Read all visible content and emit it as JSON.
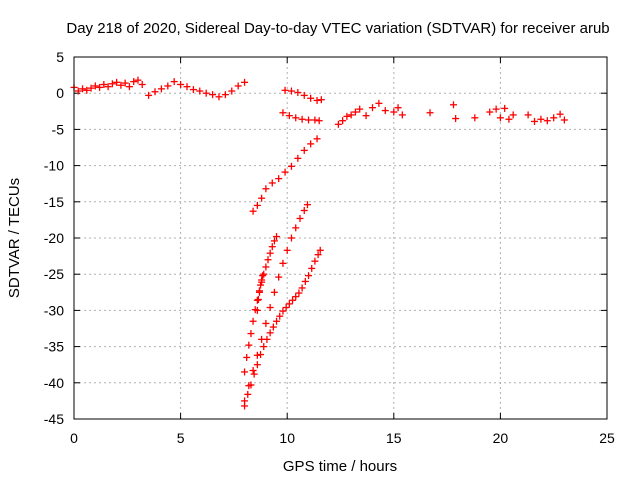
{
  "chart_data": {
    "type": "scatter",
    "title": "Day 218 of 2020, Sidereal Day-to-day VTEC variation (SDTVAR) for receiver arub",
    "xlabel": "GPS time / hours",
    "ylabel": "SDTVAR / TECUs",
    "xlim": [
      0,
      25
    ],
    "ylim": [
      -45,
      5
    ],
    "xticks": [
      0,
      5,
      10,
      15,
      20,
      25
    ],
    "yticks": [
      5,
      0,
      -5,
      -10,
      -15,
      -20,
      -25,
      -30,
      -35,
      -40,
      -45
    ],
    "grid": true,
    "marker": "plus",
    "color": "#ff0000",
    "series": [
      {
        "x": [
          0.0,
          0.2,
          0.4,
          0.6,
          0.8,
          1.0,
          1.2,
          1.4,
          1.6,
          1.8,
          2.0,
          2.2,
          2.4,
          2.6,
          2.8,
          3.0,
          3.2
        ],
        "values": [
          0.8,
          0.3,
          0.6,
          0.4,
          0.7,
          1.0,
          0.8,
          1.2,
          0.9,
          1.3,
          1.5,
          1.1,
          1.4,
          0.9,
          1.6,
          1.8,
          1.2
        ]
      },
      {
        "x": [
          3.5,
          3.8,
          4.1,
          4.4,
          4.7,
          5.0,
          5.3,
          5.6,
          5.9,
          6.2,
          6.5,
          6.8,
          7.1,
          7.4,
          7.7,
          8.0
        ],
        "values": [
          -0.3,
          0.2,
          0.6,
          1.0,
          1.6,
          1.2,
          0.9,
          0.5,
          0.3,
          0.0,
          -0.2,
          -0.5,
          -0.2,
          0.3,
          1.0,
          1.5
        ]
      },
      {
        "x": [
          9.9,
          10.2,
          10.5,
          10.8,
          11.1,
          11.4,
          11.6
        ],
        "values": [
          0.4,
          0.3,
          0.1,
          -0.3,
          -0.7,
          -1.0,
          -0.9
        ]
      },
      {
        "x": [
          9.8,
          10.1,
          10.4,
          10.7,
          11.0,
          11.3,
          11.5
        ],
        "values": [
          -2.7,
          -3.1,
          -3.4,
          -3.6,
          -3.7,
          -3.7,
          -3.8
        ]
      },
      {
        "x": [
          12.4,
          12.6,
          12.8,
          13.0,
          13.2,
          13.4,
          13.7,
          14.0,
          14.3,
          14.6,
          15.0,
          15.2,
          15.4
        ],
        "values": [
          -4.3,
          -3.8,
          -3.2,
          -3.0,
          -2.6,
          -2.2,
          -3.1,
          -2.0,
          -1.4,
          -2.4,
          -2.6,
          -2.0,
          -3.0
        ]
      },
      {
        "x": [
          16.7,
          17.8,
          17.9,
          18.8,
          19.5,
          19.8,
          20.0,
          20.2,
          20.4,
          20.6,
          21.3,
          21.6,
          21.9,
          22.2,
          22.5,
          22.8,
          23.0
        ],
        "values": [
          -2.7,
          -1.6,
          -3.5,
          -3.4,
          -2.6,
          -2.2,
          -3.4,
          -2.1,
          -3.6,
          -3.0,
          -3.0,
          -3.9,
          -3.6,
          -3.8,
          -3.4,
          -2.9,
          -3.7
        ]
      },
      {
        "x": [
          8.4,
          8.6,
          8.8,
          9.0,
          9.3,
          9.6,
          9.9,
          10.2,
          10.5,
          10.8,
          11.1,
          11.4
        ],
        "values": [
          -16.3,
          -15.5,
          -14.5,
          -13.2,
          -12.4,
          -11.8,
          -10.9,
          -10.1,
          -9.0,
          -7.9,
          -7.0,
          -6.3
        ]
      },
      {
        "x": [
          8.0,
          8.15,
          8.3,
          8.45,
          8.6,
          8.75,
          8.9,
          9.05,
          9.2,
          9.35,
          9.5,
          9.65,
          9.8,
          9.95,
          10.1,
          10.25,
          10.4,
          10.55,
          10.7,
          10.85,
          11.0,
          11.15,
          11.3,
          11.45,
          11.55
        ],
        "values": [
          -43.2,
          -41.6,
          -40.3,
          -38.8,
          -37.5,
          -36.1,
          -35.0,
          -34.0,
          -33.1,
          -32.3,
          -31.5,
          -30.8,
          -30.1,
          -29.6,
          -29.1,
          -28.6,
          -28.1,
          -27.6,
          -26.9,
          -26.0,
          -25.2,
          -24.2,
          -23.2,
          -22.3,
          -21.7
        ]
      },
      {
        "x": [
          8.0,
          8.2,
          8.4,
          8.6,
          8.8,
          9.0,
          9.2,
          9.4,
          9.6,
          9.8,
          10.0,
          10.2,
          10.4,
          10.6,
          10.8,
          10.95
        ],
        "values": [
          -42.5,
          -40.4,
          -38.3,
          -36.2,
          -34.0,
          -31.8,
          -29.6,
          -27.5,
          -25.4,
          -23.5,
          -21.7,
          -20.0,
          -18.6,
          -17.3,
          -16.2,
          -15.4
        ]
      },
      {
        "x": [
          8.0,
          8.1,
          8.2,
          8.3,
          8.4,
          8.5,
          8.6,
          8.7,
          8.8,
          8.9,
          9.0,
          9.1,
          9.2,
          9.3,
          9.4,
          9.5
        ],
        "values": [
          -38.5,
          -36.5,
          -34.8,
          -33.2,
          -31.5,
          -29.9,
          -28.6,
          -27.3,
          -26.1,
          -25.0,
          -24.0,
          -23.0,
          -22.1,
          -21.2,
          -20.4,
          -19.8
        ]
      },
      {
        "x": [
          8.6,
          8.65,
          8.7,
          8.75,
          8.8,
          8.85
        ],
        "values": [
          -30.0,
          -28.5,
          -27.5,
          -26.5,
          -25.8,
          -25.2
        ]
      }
    ]
  }
}
